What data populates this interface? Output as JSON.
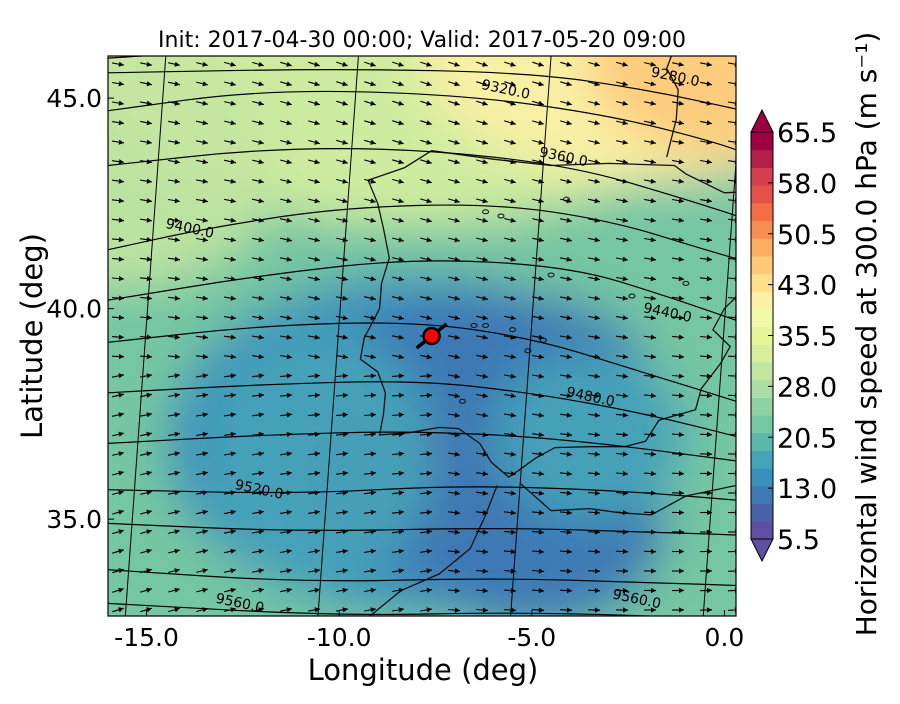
{
  "chart_data": {
    "type": "map",
    "title": "Init: 2017-04-30 00:00; Valid: 2017-05-20 09:00",
    "xlabel": "Longitude (deg)",
    "ylabel": "Latitude (deg)",
    "xlim": [
      -16.0,
      0.3
    ],
    "ylim": [
      32.7,
      46.0
    ],
    "xticks": [
      {
        "value": -15.0,
        "label": "-15.0"
      },
      {
        "value": -10.0,
        "label": "-10.0"
      },
      {
        "value": -5.0,
        "label": "-5.0"
      },
      {
        "value": 0.0,
        "label": "0.0"
      }
    ],
    "yticks": [
      {
        "value": 35.0,
        "label": "35.0"
      },
      {
        "value": 40.0,
        "label": "40.0"
      },
      {
        "value": 45.0,
        "label": "45.0"
      }
    ],
    "colorbar": {
      "label": "Horizontal wind speed at 300.0 hPa (m s⁻¹)",
      "min": 5.5,
      "max": 65.5,
      "extend": "both",
      "ticks": [
        {
          "value": 5.5,
          "label": "5.5"
        },
        {
          "value": 13.0,
          "label": "13.0"
        },
        {
          "value": 20.5,
          "label": "20.5"
        },
        {
          "value": 28.0,
          "label": "28.0"
        },
        {
          "value": 35.5,
          "label": "35.5"
        },
        {
          "value": 43.0,
          "label": "43.0"
        },
        {
          "value": 50.5,
          "label": "50.5"
        },
        {
          "value": 58.0,
          "label": "58.0"
        },
        {
          "value": 65.5,
          "label": "65.5"
        }
      ],
      "colors": [
        "#5e4fa2",
        "#4a62ab",
        "#3d79b5",
        "#3b8fbc",
        "#45a3b8",
        "#5bb6ab",
        "#75c6a3",
        "#90d1a4",
        "#abdda4",
        "#c3e6a0",
        "#d8ef9e",
        "#e6f598",
        "#f2f9a8",
        "#fdf1a5",
        "#fee08b",
        "#fdc877",
        "#fdae61",
        "#f98e52",
        "#f46d43",
        "#e55148",
        "#d53e4f",
        "#b61e4a",
        "#9e0142"
      ]
    },
    "wind_speed_field": {
      "description_units": "m s-1",
      "centers": [
        {
          "lon": -8.3,
          "lat": 36.5,
          "value": 8,
          "spread": 3.0
        },
        {
          "lon": -5.0,
          "lat": 35.2,
          "value": 11,
          "spread": 3.5
        },
        {
          "lon": -7.0,
          "lat": 38.7,
          "value": 10,
          "spread": 2.8
        }
      ],
      "background": 22
    },
    "contours": [
      {
        "label": "9280.0",
        "label_lon": -1.3,
        "label_lat": 45.4
      },
      {
        "label": "9320.0",
        "label_lon": -5.7,
        "label_lat": 45.1
      },
      {
        "label": "9360.0",
        "label_lon": -4.2,
        "label_lat": 43.5
      },
      {
        "label": "9400.0",
        "label_lon": -13.9,
        "label_lat": 41.8
      },
      {
        "label": "9440.0",
        "label_lon": -1.5,
        "label_lat": 39.8
      },
      {
        "label": "9480.0",
        "label_lon": -3.5,
        "label_lat": 37.8
      },
      {
        "label": "9520.0",
        "label_lon": -12.1,
        "label_lat": 35.6
      },
      {
        "label": "9560.0",
        "label_lon": -12.6,
        "label_lat": 32.9
      },
      {
        "label": "9560.0",
        "label_lon": -2.3,
        "label_lat": 33.0
      }
    ],
    "marker": {
      "lon": -7.6,
      "lat": 39.35,
      "color": "#ff0000"
    }
  }
}
